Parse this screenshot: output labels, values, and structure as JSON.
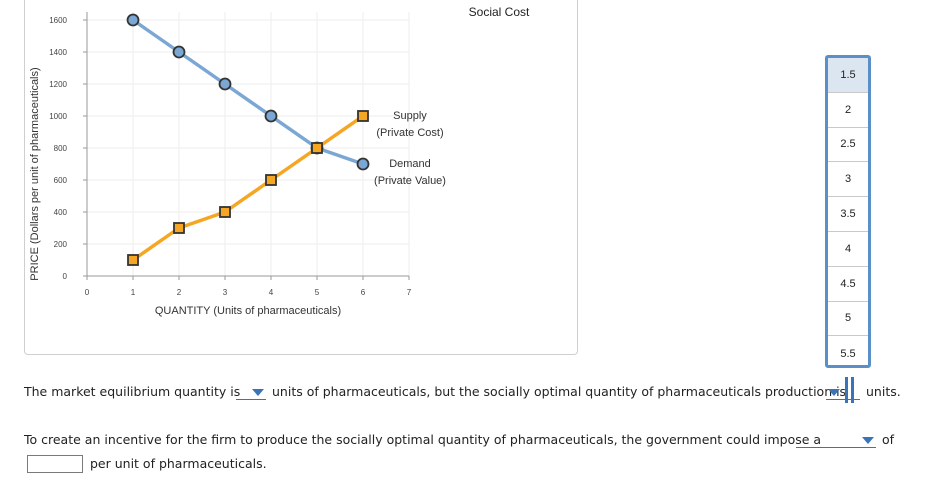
{
  "chart_data": {
    "type": "line",
    "title": "",
    "xlabel": "QUANTITY (Units of pharmaceuticals)",
    "ylabel": "PRICE (Dollars per unit of pharmaceuticals)",
    "xlim": [
      0,
      7
    ],
    "ylim": [
      0,
      1600
    ],
    "x_ticks": [
      "0",
      "1",
      "2",
      "3",
      "4",
      "5",
      "6",
      "7"
    ],
    "y_ticks": [
      "0",
      "200",
      "400",
      "600",
      "800",
      "1000",
      "1200",
      "1400",
      "1600"
    ],
    "series": [
      {
        "name": "Demand (Private Value)",
        "label_line1": "Demand",
        "label_line2": "(Private Value)",
        "color": "#7ba7d4",
        "marker": "circle",
        "x": [
          1,
          2,
          3,
          4,
          5,
          6
        ],
        "values": [
          1600,
          1400,
          1200,
          1000,
          800,
          700
        ]
      },
      {
        "name": "Supply (Private Cost)",
        "label_line1": "Supply",
        "label_line2": "(Private Cost)",
        "color": "#f5a623",
        "marker": "square",
        "x": [
          1,
          2,
          3,
          4,
          5,
          6
        ],
        "values": [
          100,
          300,
          400,
          600,
          800,
          1000
        ]
      }
    ],
    "annotations": [
      "Social Cost"
    ]
  },
  "dropdown": {
    "options": [
      "1.5",
      "2",
      "2.5",
      "3",
      "3.5",
      "4",
      "4.5",
      "5",
      "5.5"
    ],
    "selected": "1.5"
  },
  "question": {
    "line1_part1": "The market equilibrium quantity is",
    "line1_part2": "units of pharmaceuticals, but the socially optimal quantity of pharmaceuticals production is",
    "line1_part3": "units.",
    "line2_part1": "To create an incentive for the firm to produce the socially optimal quantity of pharmaceuticals, the government could impose a",
    "line2_part2": "of",
    "line3_part1": "per unit of pharmaceuticals.",
    "dollar_symbol": "$",
    "dollar_value": ""
  },
  "colors": {
    "accent": "#3a73b7",
    "demand": "#7ba7d4",
    "supply": "#f5a623"
  }
}
